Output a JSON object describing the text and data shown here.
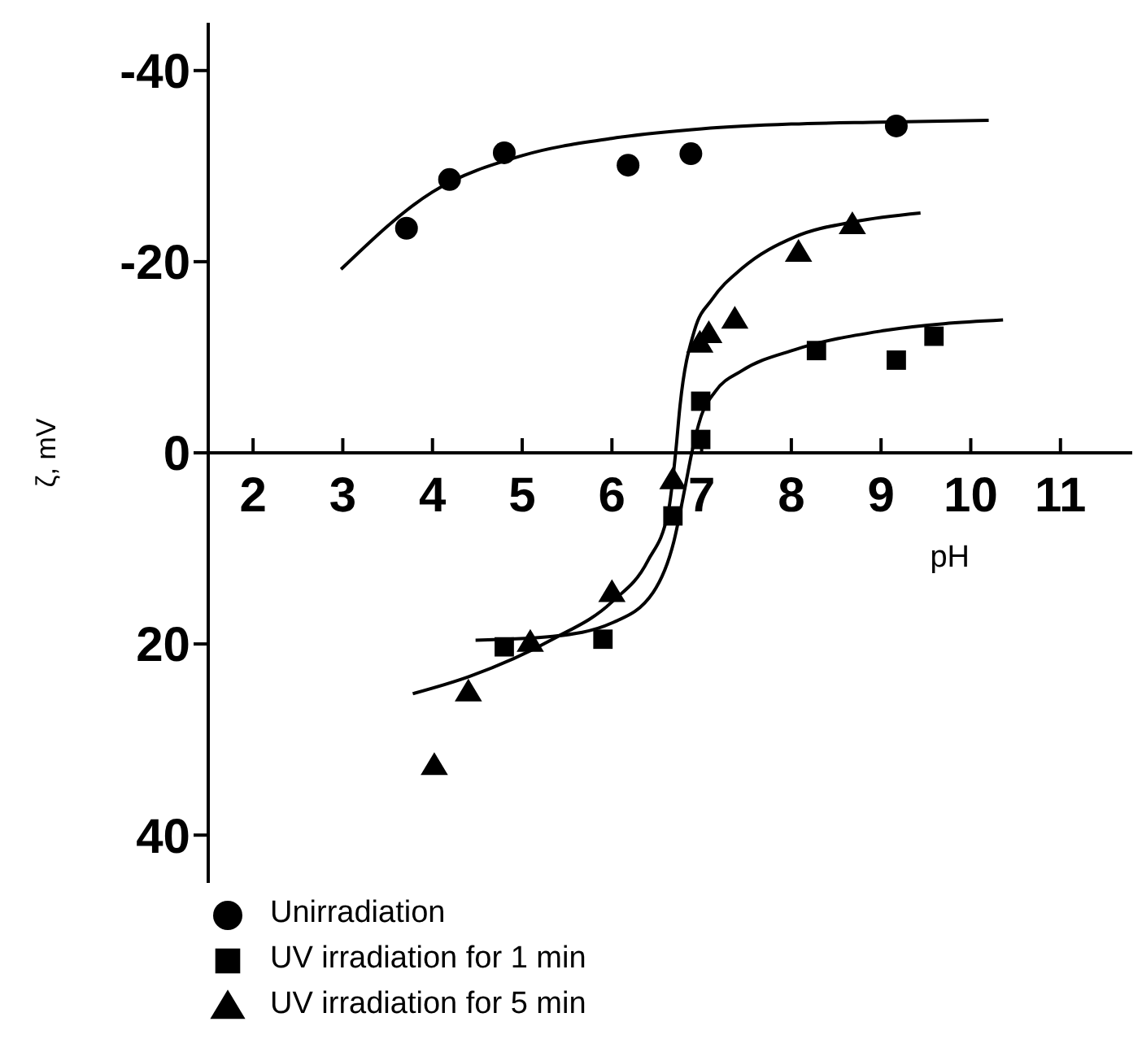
{
  "chart_data": {
    "type": "scatter",
    "xlabel": "pH",
    "ylabel": "ζ, mV",
    "xlim": [
      1.5,
      11.8
    ],
    "ylim": [
      45,
      -45
    ],
    "xticks": [
      2,
      3,
      4,
      5,
      6,
      7,
      8,
      9,
      10,
      11
    ],
    "yticks": [
      -40,
      -20,
      0,
      20,
      40
    ],
    "grid": false,
    "legend": "bottom left",
    "series": [
      {
        "name": "Unirradiation",
        "marker": "circle",
        "color": "#000000",
        "x": [
          3.71,
          4.19,
          4.8,
          6.18,
          6.88,
          9.17
        ],
        "values": [
          -23.5,
          -28.6,
          -31.4,
          -30.1,
          -31.3,
          -34.2
        ]
      },
      {
        "name": "UV irradiation for 1 min",
        "marker": "square",
        "color": "#000000",
        "x": [
          4.8,
          5.9,
          6.68,
          6.99,
          6.99,
          8.28,
          9.17,
          9.59
        ],
        "values": [
          20.3,
          19.5,
          6.6,
          -1.4,
          -5.4,
          -10.7,
          -9.7,
          -12.2
        ]
      },
      {
        "name": "UV irradiation for 5 min",
        "marker": "triangle",
        "color": "#000000",
        "x": [
          4.02,
          4.4,
          5.09,
          6.0,
          6.68,
          6.98,
          7.08,
          7.37,
          8.08,
          8.68
        ],
        "values": [
          32.7,
          25.0,
          19.8,
          14.6,
          2.8,
          -11.5,
          -12.5,
          -14.0,
          -21.0,
          -23.9
        ]
      },
      {
        "type": "line",
        "marker": "none",
        "color": "#000000",
        "x": [
          2.98,
          4.0,
          5.0,
          6.0,
          7.0,
          8.0,
          9.0,
          10.2
        ],
        "values": [
          -19.2,
          -27.3,
          -31.1,
          -32.9,
          -33.9,
          -34.4,
          -34.6,
          -34.8
        ]
      },
      {
        "type": "line",
        "marker": "none",
        "color": "#000000",
        "x": [
          4.48,
          5.34,
          6.0,
          6.46,
          6.69,
          6.82,
          6.89,
          6.99,
          7.15,
          7.45,
          8.04,
          9.04,
          10.36
        ],
        "values": [
          19.6,
          19.2,
          17.8,
          14.6,
          9.3,
          3.4,
          0,
          -3.7,
          -6.4,
          -8.6,
          -10.8,
          -12.8,
          -13.9
        ]
      },
      {
        "type": "line",
        "marker": "none",
        "color": "#000000",
        "x": [
          3.78,
          4.41,
          5.34,
          6.0,
          6.4,
          6.63,
          6.71,
          6.76,
          6.92,
          7.12,
          7.45,
          8.04,
          8.71,
          9.44
        ],
        "values": [
          25.2,
          23.4,
          19.5,
          15.6,
          11.3,
          6.1,
          0,
          -5.0,
          -12.8,
          -16.1,
          -19.3,
          -22.6,
          -24.2,
          -25.1
        ]
      }
    ]
  }
}
